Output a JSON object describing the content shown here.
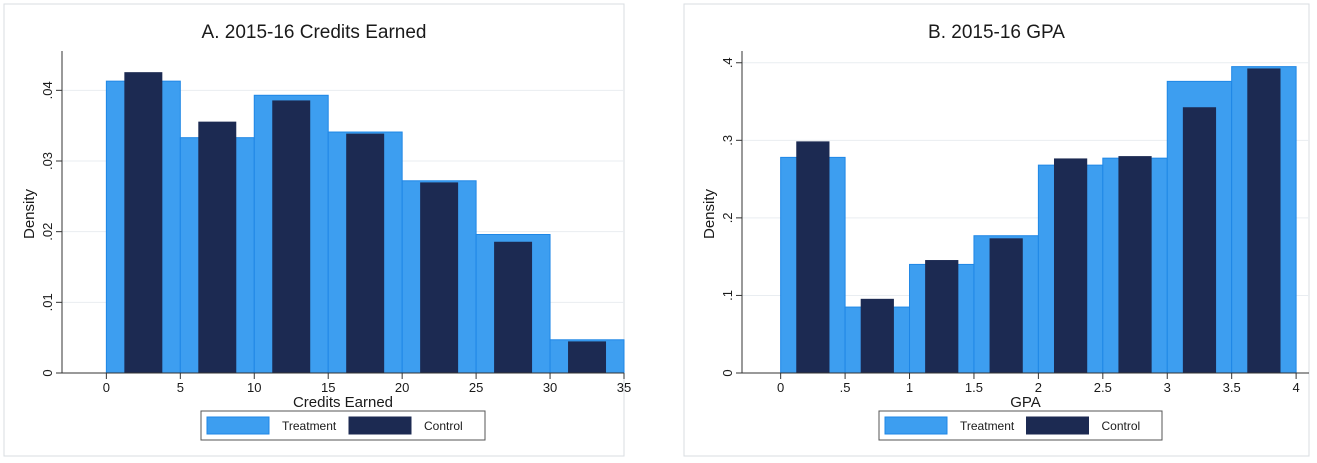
{
  "colors": {
    "treatment": "#3d9ef0",
    "treatment_edge": "#1f87e6",
    "control": "#1c2a52",
    "grid": "#e9edf1",
    "panel_border": "#d8dde2"
  },
  "chart_data": [
    {
      "type": "bar",
      "title": "A. 2015-16 Credits Earned",
      "xlabel": "Credits Earned",
      "ylabel": "Density",
      "xlim": [
        -3,
        35
      ],
      "ylim": [
        0,
        0.045
      ],
      "xticks": [
        0,
        5,
        10,
        15,
        20,
        25,
        30,
        35
      ],
      "xtick_labels": [
        "0",
        "5",
        "10",
        "15",
        "20",
        "25",
        "30",
        "35"
      ],
      "yticks": [
        0,
        0.01,
        0.02,
        0.03,
        0.04
      ],
      "ytick_labels": [
        "0",
        ".01",
        ".02",
        ".03",
        ".04"
      ],
      "grid": true,
      "legend_position": "bottom",
      "series": [
        {
          "name": "Treatment",
          "color_key": "treatment",
          "bins": [
            [
              0,
              5
            ],
            [
              5,
              10
            ],
            [
              10,
              15
            ],
            [
              15,
              20
            ],
            [
              20,
              25
            ],
            [
              25,
              30
            ],
            [
              30,
              35
            ]
          ],
          "values": [
            0.0413,
            0.0333,
            0.0393,
            0.0341,
            0.0272,
            0.0196,
            0.0047
          ]
        },
        {
          "name": "Control",
          "color_key": "control",
          "bins": [
            [
              1.25,
              3.75
            ],
            [
              6.25,
              8.75
            ],
            [
              11.25,
              13.75
            ],
            [
              16.25,
              18.75
            ],
            [
              21.25,
              23.75
            ],
            [
              26.25,
              28.75
            ],
            [
              31.25,
              33.75
            ]
          ],
          "values": [
            0.0425,
            0.0355,
            0.0385,
            0.0338,
            0.0269,
            0.0185,
            0.0044
          ]
        }
      ]
    },
    {
      "type": "bar",
      "title": "B. 2015-16 GPA",
      "xlabel": "GPA",
      "ylabel": "Density",
      "xlim": [
        -0.3,
        4.1
      ],
      "ylim": [
        0,
        0.41
      ],
      "xticks": [
        0,
        0.5,
        1,
        1.5,
        2,
        2.5,
        3,
        3.5,
        4
      ],
      "xtick_labels": [
        "0",
        ".5",
        "1",
        "1.5",
        "2",
        "2.5",
        "3",
        "3.5",
        "4"
      ],
      "yticks": [
        0,
        0.1,
        0.2,
        0.3,
        0.4
      ],
      "ytick_labels": [
        "0",
        ".1",
        ".2",
        ".3",
        ".4"
      ],
      "grid": true,
      "legend_position": "bottom",
      "series": [
        {
          "name": "Treatment",
          "color_key": "treatment",
          "bins": [
            [
              0,
              0.5
            ],
            [
              0.5,
              1
            ],
            [
              1,
              1.5
            ],
            [
              1.5,
              2
            ],
            [
              2,
              2.5
            ],
            [
              2.5,
              3
            ],
            [
              3,
              3.5
            ],
            [
              3.5,
              4
            ]
          ],
          "values": [
            0.278,
            0.085,
            0.14,
            0.177,
            0.268,
            0.277,
            0.376,
            0.395
          ]
        },
        {
          "name": "Control",
          "color_key": "control",
          "bins": [
            [
              0.125,
              0.375
            ],
            [
              0.625,
              0.875
            ],
            [
              1.125,
              1.375
            ],
            [
              1.625,
              1.875
            ],
            [
              2.125,
              2.375
            ],
            [
              2.625,
              2.875
            ],
            [
              3.125,
              3.375
            ],
            [
              3.625,
              3.875
            ]
          ],
          "values": [
            0.298,
            0.095,
            0.145,
            0.173,
            0.276,
            0.279,
            0.342,
            0.392
          ]
        }
      ]
    }
  ]
}
